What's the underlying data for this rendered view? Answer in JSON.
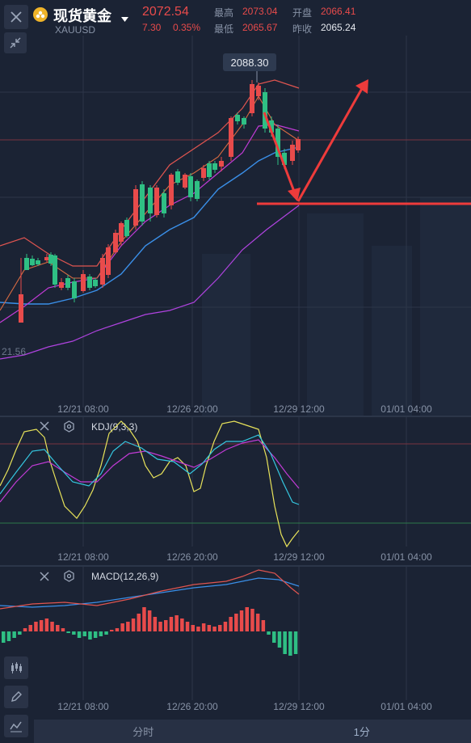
{
  "header": {
    "title": "现货黄金",
    "symbol": "XAUUSD",
    "price": "2072.54",
    "change": "7.30",
    "change_pct": "0.35%",
    "high_label": "最高",
    "high_value": "2073.04",
    "low_label": "最低",
    "low_value": "2065.67",
    "open_label": "开盘",
    "open_value": "2066.41",
    "prev_label": "昨收",
    "prev_value": "2065.24"
  },
  "main_chart": {
    "peak_label": "2088.30",
    "low_axis_label": "21.56",
    "time_labels": [
      "12/21 08:00",
      "12/26 20:00",
      "12/29 12:00",
      "01/01 04:00"
    ]
  },
  "kdj": {
    "title": "KDJ(9,3,3)",
    "time_labels": [
      "12/21 08:00",
      "12/26 20:00",
      "12/29 12:00",
      "01/01 04:00"
    ]
  },
  "macd": {
    "title": "MACD(12,26,9)",
    "time_labels": [
      "12/21 08:00",
      "12/26 20:00",
      "12/29 12:00",
      "01/01 04:00"
    ]
  },
  "tabs": [
    {
      "label": "分时"
    },
    {
      "label": "1分"
    }
  ],
  "colors": {
    "up": "#e84b4b",
    "down": "#2fbf84",
    "background": "#1b2334",
    "ma_blue": "#3a8fe8",
    "ma_purple": "#b043e0",
    "kdj_yellow": "#e8e35a",
    "kdj_cyan": "#35c7e0"
  },
  "icons": [
    "close-icon",
    "shrink-icon",
    "gear-icon",
    "candlestick-icon",
    "pencil-icon",
    "line-chart-icon"
  ]
}
